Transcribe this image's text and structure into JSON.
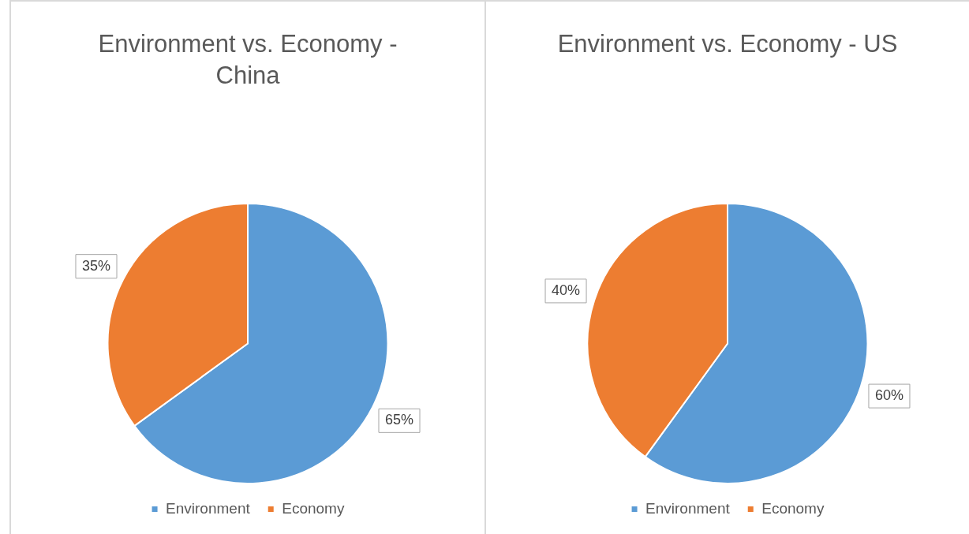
{
  "chart_data": [
    {
      "type": "pie",
      "title": "Environment vs. Economy - China",
      "categories": [
        "Environment",
        "Economy"
      ],
      "values": [
        65,
        35
      ],
      "colors": [
        "#5b9bd5",
        "#ed7d31"
      ],
      "value_labels": [
        "65%",
        "35%"
      ],
      "legend": "bottom"
    },
    {
      "type": "pie",
      "title": "Environment vs. Economy - US",
      "categories": [
        "Environment",
        "Economy"
      ],
      "values": [
        60,
        40
      ],
      "colors": [
        "#5b9bd5",
        "#ed7d31"
      ],
      "value_labels": [
        "60%",
        "40%"
      ],
      "legend": "bottom"
    }
  ]
}
